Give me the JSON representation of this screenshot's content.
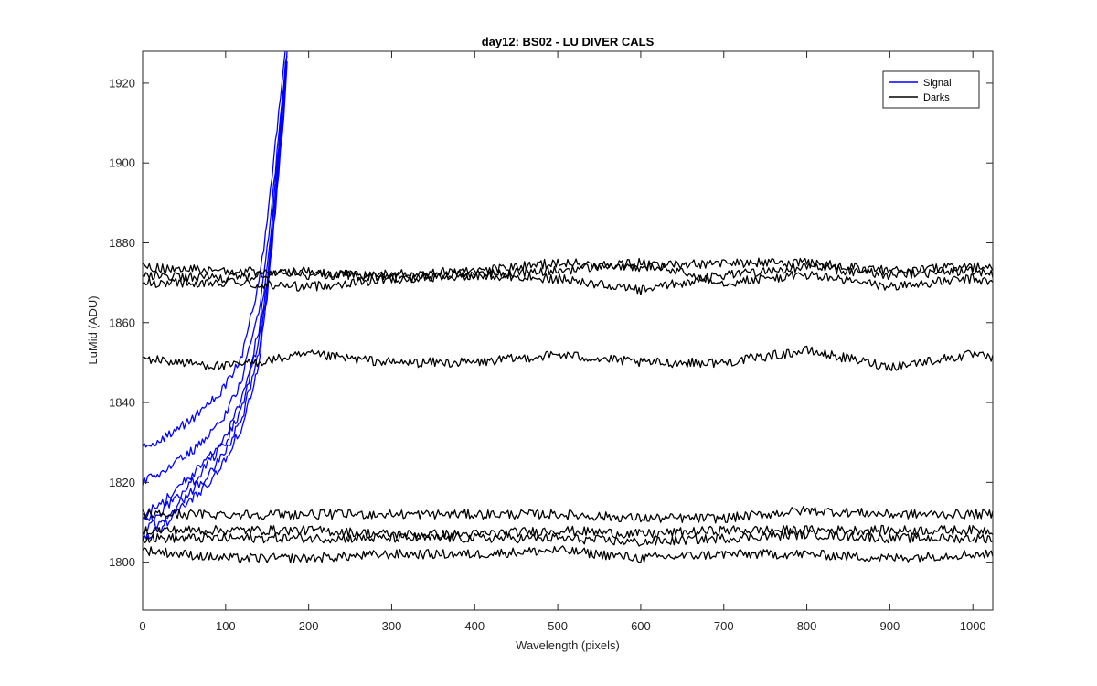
{
  "chart_data": {
    "type": "line",
    "title": "day12: BS02 - LU DIVER CALS",
    "xlabel": "Wavelength (pixels)",
    "ylabel": "LuMid (ADU)",
    "xlim": [
      0,
      1024
    ],
    "ylim": [
      1788,
      1928
    ],
    "xticks": [
      0,
      100,
      200,
      300,
      400,
      500,
      600,
      700,
      800,
      900,
      1000
    ],
    "yticks": [
      1800,
      1820,
      1840,
      1860,
      1880,
      1900,
      1920
    ],
    "grid": false,
    "legend": {
      "placement": "top-right",
      "entries": [
        "Signal",
        "Darks"
      ]
    },
    "colors": {
      "Signal": "#0000ff",
      "Darks": "#000000"
    },
    "series": [
      {
        "name": "Signal",
        "color": "#0000ff",
        "x": [
          0,
          20,
          40,
          60,
          80,
          100,
          120,
          140,
          150,
          160,
          170,
          175
        ],
        "y": [
          1829,
          1830,
          1833,
          1836,
          1840,
          1844,
          1852,
          1870,
          1885,
          1905,
          1925,
          1932
        ]
      },
      {
        "name": "Signal",
        "color": "#0000ff",
        "x": [
          0,
          20,
          40,
          60,
          80,
          100,
          120,
          140,
          150,
          160,
          170,
          175
        ],
        "y": [
          1820,
          1822,
          1825,
          1828,
          1832,
          1837,
          1846,
          1863,
          1878,
          1898,
          1920,
          1930
        ]
      },
      {
        "name": "Signal",
        "color": "#0000ff",
        "x": [
          0,
          20,
          40,
          60,
          80,
          100,
          120,
          140,
          150,
          160,
          170,
          175
        ],
        "y": [
          1812,
          1814,
          1818,
          1822,
          1826,
          1832,
          1841,
          1858,
          1873,
          1895,
          1918,
          1930
        ]
      },
      {
        "name": "Signal",
        "color": "#0000ff",
        "x": [
          0,
          20,
          40,
          60,
          80,
          100,
          120,
          140,
          150,
          160,
          170,
          175
        ],
        "y": [
          1810,
          1812,
          1816,
          1820,
          1825,
          1830,
          1839,
          1856,
          1871,
          1893,
          1916,
          1929
        ]
      },
      {
        "name": "Signal",
        "color": "#0000ff",
        "x": [
          0,
          20,
          40,
          60,
          80,
          100,
          120,
          140,
          150,
          160,
          170,
          175
        ],
        "y": [
          1808,
          1810,
          1814,
          1818,
          1822,
          1828,
          1836,
          1853,
          1868,
          1890,
          1914,
          1928
        ]
      },
      {
        "name": "Signal",
        "color": "#0000ff",
        "x": [
          0,
          20,
          40,
          60,
          80,
          100,
          120,
          140,
          150,
          160,
          170,
          175
        ],
        "y": [
          1806,
          1808,
          1812,
          1816,
          1820,
          1826,
          1834,
          1850,
          1866,
          1888,
          1912,
          1927
        ]
      },
      {
        "name": "Darks",
        "color": "#000000",
        "x": [
          0,
          100,
          200,
          300,
          400,
          500,
          600,
          700,
          800,
          900,
          1000,
          1024
        ],
        "y": [
          1874,
          1873,
          1872,
          1872,
          1873,
          1875,
          1874,
          1875,
          1875,
          1873,
          1874,
          1874
        ]
      },
      {
        "name": "Darks",
        "color": "#000000",
        "x": [
          0,
          100,
          200,
          300,
          400,
          500,
          600,
          700,
          800,
          900,
          1000,
          1024
        ],
        "y": [
          1872,
          1871,
          1873,
          1871,
          1872,
          1871,
          1868,
          1872,
          1874,
          1872,
          1873,
          1872
        ]
      },
      {
        "name": "Darks",
        "color": "#000000",
        "x": [
          0,
          100,
          200,
          300,
          400,
          500,
          600,
          700,
          800,
          900,
          1000,
          1024
        ],
        "y": [
          1870,
          1870,
          1869,
          1871,
          1872,
          1873,
          1875,
          1870,
          1872,
          1869,
          1871,
          1870
        ]
      },
      {
        "name": "Darks",
        "color": "#000000",
        "x": [
          0,
          100,
          200,
          300,
          400,
          500,
          600,
          700,
          800,
          900,
          1000,
          1024
        ],
        "y": [
          1851,
          1849,
          1852,
          1850,
          1850,
          1852,
          1850,
          1850,
          1853,
          1849,
          1852,
          1851
        ]
      },
      {
        "name": "Darks",
        "color": "#000000",
        "x": [
          0,
          100,
          200,
          300,
          400,
          500,
          600,
          700,
          800,
          900,
          1000,
          1024
        ],
        "y": [
          1812,
          1812,
          1812,
          1812,
          1812,
          1812,
          1811,
          1811,
          1813,
          1812,
          1812,
          1812
        ]
      },
      {
        "name": "Darks",
        "color": "#000000",
        "x": [
          0,
          100,
          200,
          300,
          400,
          500,
          600,
          700,
          800,
          900,
          1000,
          1024
        ],
        "y": [
          1808,
          1808,
          1808,
          1807,
          1807,
          1808,
          1807,
          1808,
          1808,
          1808,
          1808,
          1808
        ]
      },
      {
        "name": "Darks",
        "color": "#000000",
        "x": [
          0,
          100,
          200,
          300,
          400,
          500,
          600,
          700,
          800,
          900,
          1000,
          1024
        ],
        "y": [
          1806,
          1806,
          1806,
          1806,
          1806,
          1806,
          1805,
          1806,
          1807,
          1806,
          1806,
          1806
        ]
      },
      {
        "name": "Darks",
        "color": "#000000",
        "x": [
          0,
          100,
          200,
          300,
          400,
          500,
          600,
          700,
          800,
          900,
          1000,
          1024
        ],
        "y": [
          1803,
          1801,
          1801,
          1802,
          1802,
          1803,
          1801,
          1802,
          1802,
          1801,
          1802,
          1802
        ]
      }
    ]
  }
}
